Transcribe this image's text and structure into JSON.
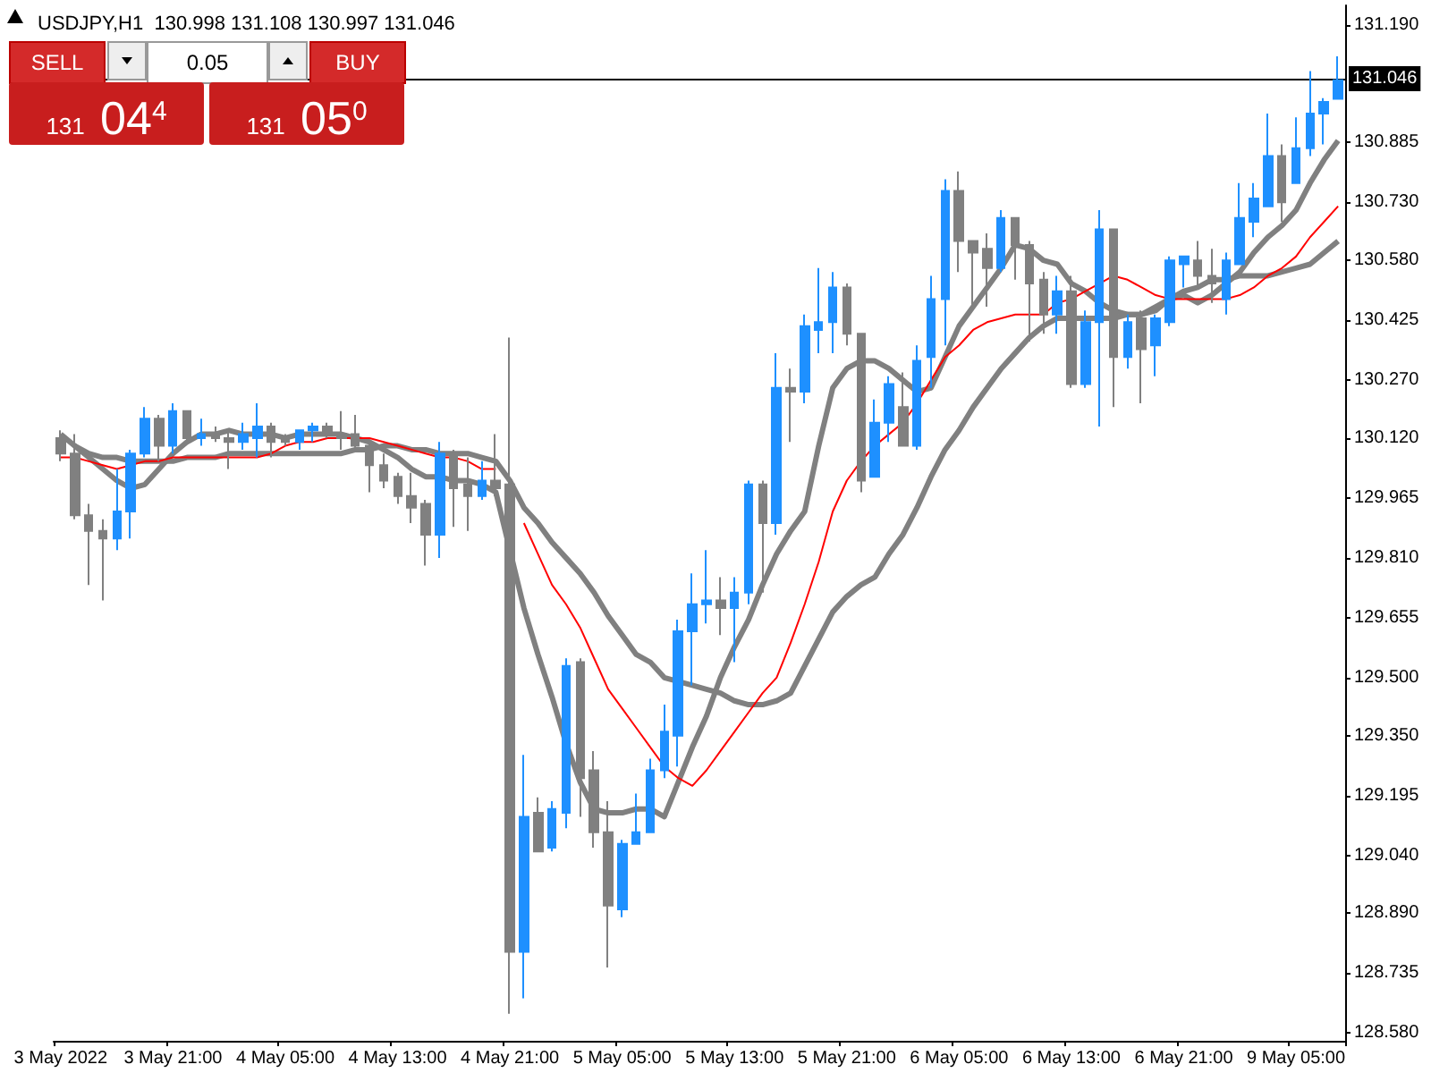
{
  "chart_data": {
    "type": "candlestick",
    "title": "USDJPY,H1  130.998 131.108 130.997 131.046",
    "categories": [
      "3 May 2022",
      null,
      null,
      null,
      null,
      null,
      null,
      null,
      "3 May 21:00",
      null,
      null,
      null,
      null,
      null,
      null,
      null,
      "4 May 05:00",
      null,
      null,
      null,
      null,
      null,
      null,
      null,
      "4 May 13:00",
      null,
      null,
      null,
      null,
      null,
      null,
      null,
      "4 May 21:00",
      null,
      null,
      null,
      null,
      null,
      null,
      null,
      "5 May 05:00",
      null,
      null,
      null,
      null,
      null,
      null,
      null,
      "5 May 13:00",
      null,
      null,
      null,
      null,
      null,
      null,
      null,
      "5 May 21:00",
      null,
      null,
      null,
      null,
      null,
      null,
      null,
      "6 May 05:00",
      null,
      null,
      null,
      null,
      null,
      null,
      null,
      "6 May 13:00",
      null,
      null,
      null,
      null,
      null,
      null,
      null,
      "6 May 21:00",
      null,
      null,
      null,
      null,
      null,
      null,
      null,
      "9 May 05:00",
      null,
      null,
      null
    ],
    "ylim": [
      128.56,
      131.24
    ],
    "yticks": [
      {
        "value": 131.19,
        "label": "131.190"
      },
      {
        "value": 130.885,
        "label": "130.885"
      },
      {
        "value": 130.73,
        "label": "130.730"
      },
      {
        "value": 130.58,
        "label": "130.580"
      },
      {
        "value": 130.425,
        "label": "130.425"
      },
      {
        "value": 130.27,
        "label": "130.270"
      },
      {
        "value": 130.12,
        "label": "130.120"
      },
      {
        "value": 129.965,
        "label": "129.965"
      },
      {
        "value": 129.81,
        "label": "129.810"
      },
      {
        "value": 129.655,
        "label": "129.655"
      },
      {
        "value": 129.5,
        "label": "129.500"
      },
      {
        "value": 129.35,
        "label": "129.350"
      },
      {
        "value": 129.195,
        "label": "129.195"
      },
      {
        "value": 129.04,
        "label": "129.040"
      },
      {
        "value": 128.89,
        "label": "128.890"
      },
      {
        "value": 128.735,
        "label": "128.735"
      },
      {
        "value": 128.58,
        "label": "128.580"
      }
    ],
    "series": [
      {
        "type": "line",
        "color": "#808080",
        "values": [
          130.13,
          130.1,
          130.07,
          130.04,
          130.01,
          129.99,
          130.0,
          130.04,
          130.08,
          130.11,
          130.13,
          130.13,
          130.14,
          130.13,
          130.13,
          130.13,
          130.12,
          130.13,
          130.13,
          130.13,
          130.13,
          130.12,
          130.11,
          130.09,
          130.07,
          130.04,
          130.02,
          130.02,
          130.01,
          130.01,
          130.0,
          129.98,
          129.83,
          129.68,
          129.56,
          129.45,
          129.33,
          129.23,
          129.16,
          129.15,
          129.15,
          129.16,
          129.16,
          129.14,
          129.23,
          129.32,
          129.4,
          129.5,
          129.58,
          129.65,
          129.74,
          129.82,
          129.88,
          129.93,
          130.1,
          130.25,
          130.3,
          130.32,
          130.32,
          130.3,
          130.27,
          130.24,
          130.25,
          130.33,
          130.41,
          130.46,
          130.51,
          130.56,
          130.62,
          130.61,
          130.58,
          130.57,
          130.52,
          130.5,
          130.47,
          130.45,
          130.44,
          130.44,
          130.45,
          130.48,
          130.49,
          130.47,
          130.49,
          130.52,
          130.55,
          130.6,
          130.64,
          130.67,
          130.71,
          130.78,
          130.84,
          130.89
        ]
      },
      {
        "type": "line",
        "color": "#808080",
        "values": [
          null,
          130.1,
          130.08,
          130.07,
          130.07,
          130.06,
          130.06,
          130.06,
          130.06,
          130.07,
          130.07,
          130.07,
          130.08,
          130.08,
          130.08,
          130.08,
          130.08,
          130.08,
          130.08,
          130.08,
          130.08,
          130.09,
          130.09,
          130.1,
          130.1,
          130.09,
          130.09,
          130.08,
          130.08,
          130.08,
          130.07,
          130.06,
          130.01,
          129.94,
          129.9,
          129.85,
          129.81,
          129.77,
          129.72,
          129.66,
          129.61,
          129.56,
          129.54,
          129.5,
          129.49,
          129.48,
          129.47,
          129.46,
          129.44,
          129.43,
          129.43,
          129.44,
          129.46,
          129.53,
          129.6,
          129.67,
          129.71,
          129.74,
          129.76,
          129.82,
          129.87,
          129.94,
          130.02,
          130.09,
          130.14,
          130.2,
          130.25,
          130.3,
          130.34,
          130.38,
          130.41,
          130.43,
          130.43,
          130.43,
          130.43,
          130.43,
          130.44,
          130.44,
          130.46,
          130.48,
          130.5,
          130.51,
          130.53,
          130.53,
          130.54,
          130.54,
          130.54,
          130.55,
          130.56,
          130.57,
          130.6,
          130.63
        ]
      },
      {
        "type": "line",
        "color": "#ff0000",
        "values": [
          130.07,
          130.07,
          130.06,
          130.05,
          130.04,
          130.05,
          130.06,
          130.06,
          130.07,
          130.07,
          130.07,
          130.07,
          130.07,
          130.07,
          130.07,
          130.08,
          130.1,
          130.11,
          130.11,
          130.12,
          130.12,
          130.12,
          130.12,
          130.11,
          130.1,
          130.09,
          130.08,
          130.07,
          130.07,
          130.06,
          130.04,
          130.04,
          null,
          129.9,
          129.82,
          129.74,
          129.69,
          129.63,
          129.55,
          129.47,
          129.42,
          129.37,
          129.32,
          129.27,
          129.24,
          129.22,
          129.26,
          129.31,
          129.36,
          129.41,
          129.46,
          129.5,
          129.59,
          129.69,
          129.8,
          129.93,
          130.01,
          130.06,
          130.1,
          130.13,
          130.16,
          130.21,
          130.27,
          130.33,
          130.36,
          130.4,
          130.42,
          130.43,
          130.44,
          130.44,
          130.44,
          130.47,
          130.48,
          130.5,
          130.52,
          130.54,
          130.53,
          130.51,
          130.49,
          130.48,
          130.48,
          130.48,
          130.48,
          130.48,
          130.49,
          130.51,
          130.54,
          130.56,
          130.59,
          130.64,
          130.68,
          130.72
        ]
      },
      {
        "type": "candlestick",
        "ohlc": [
          [
            130.12,
            130.14,
            130.06,
            130.08
          ],
          [
            130.08,
            130.13,
            129.91,
            129.92
          ],
          [
            129.92,
            129.95,
            129.74,
            129.88
          ],
          [
            129.88,
            129.91,
            129.7,
            129.86
          ],
          [
            129.86,
            130.04,
            129.83,
            129.93
          ],
          [
            129.93,
            130.09,
            129.86,
            130.08
          ],
          [
            130.08,
            130.2,
            130.07,
            130.17
          ],
          [
            130.17,
            130.18,
            130.06,
            130.1
          ],
          [
            130.1,
            130.21,
            130.08,
            130.19
          ],
          [
            130.19,
            130.19,
            130.11,
            130.12
          ],
          [
            130.12,
            130.17,
            130.1,
            130.13
          ],
          [
            130.13,
            130.15,
            130.11,
            130.12
          ],
          [
            130.12,
            130.14,
            130.04,
            130.11
          ],
          [
            130.11,
            130.16,
            130.09,
            130.13
          ],
          [
            130.12,
            130.21,
            130.07,
            130.15
          ],
          [
            130.15,
            130.16,
            130.07,
            130.11
          ],
          [
            130.12,
            130.13,
            130.1,
            130.11
          ],
          [
            130.11,
            130.14,
            130.09,
            130.14
          ],
          [
            130.14,
            130.16,
            130.11,
            130.15
          ],
          [
            130.15,
            130.16,
            130.12,
            130.13
          ],
          [
            130.13,
            130.19,
            130.09,
            130.12
          ],
          [
            130.13,
            130.18,
            130.09,
            130.1
          ],
          [
            130.1,
            130.11,
            129.98,
            130.05
          ],
          [
            130.05,
            130.08,
            129.99,
            130.01
          ],
          [
            130.02,
            130.03,
            129.95,
            129.97
          ],
          [
            129.97,
            130.03,
            129.9,
            129.94
          ],
          [
            129.95,
            129.96,
            129.79,
            129.87
          ],
          [
            129.87,
            130.11,
            129.81,
            130.08
          ],
          [
            130.08,
            130.09,
            129.89,
            129.99
          ],
          [
            130.0,
            130.07,
            129.88,
            129.97
          ],
          [
            129.97,
            130.06,
            129.96,
            130.01
          ],
          [
            130.01,
            130.13,
            129.97,
            129.99
          ],
          [
            130.0,
            130.38,
            128.63,
            128.79
          ],
          [
            128.79,
            129.3,
            128.67,
            129.14
          ],
          [
            129.15,
            129.19,
            129.05,
            129.05
          ],
          [
            129.06,
            129.18,
            129.05,
            129.16
          ],
          [
            129.15,
            129.55,
            129.11,
            129.53
          ],
          [
            129.54,
            129.55,
            129.14,
            129.24
          ],
          [
            129.26,
            129.31,
            129.06,
            129.1
          ],
          [
            129.1,
            129.18,
            128.75,
            128.91
          ],
          [
            128.9,
            129.08,
            128.88,
            129.07
          ],
          [
            129.07,
            129.2,
            129.07,
            129.1
          ],
          [
            129.1,
            129.29,
            129.1,
            129.26
          ],
          [
            129.26,
            129.43,
            129.24,
            129.36
          ],
          [
            129.35,
            129.65,
            129.27,
            129.62
          ],
          [
            129.62,
            129.77,
            129.48,
            129.69
          ],
          [
            129.69,
            129.83,
            129.64,
            129.7
          ],
          [
            129.7,
            129.76,
            129.61,
            129.68
          ],
          [
            129.68,
            129.76,
            129.54,
            129.72
          ],
          [
            129.72,
            130.01,
            129.69,
            130.0
          ],
          [
            130.0,
            130.01,
            129.72,
            129.9
          ],
          [
            129.9,
            130.34,
            129.87,
            130.25
          ],
          [
            130.25,
            130.3,
            130.11,
            130.24
          ],
          [
            130.24,
            130.44,
            130.21,
            130.41
          ],
          [
            130.4,
            130.56,
            130.34,
            130.42
          ],
          [
            130.42,
            130.55,
            130.34,
            130.51
          ],
          [
            130.51,
            130.52,
            130.36,
            130.39
          ],
          [
            130.39,
            130.39,
            129.98,
            130.01
          ],
          [
            130.02,
            130.22,
            130.02,
            130.16
          ],
          [
            130.16,
            130.28,
            130.11,
            130.26
          ],
          [
            130.2,
            130.29,
            130.1,
            130.1
          ],
          [
            130.1,
            130.36,
            130.09,
            130.32
          ],
          [
            130.33,
            130.54,
            130.25,
            130.48
          ],
          [
            130.48,
            130.79,
            130.36,
            130.76
          ],
          [
            130.76,
            130.81,
            130.55,
            130.63
          ],
          [
            130.63,
            130.63,
            130.45,
            130.6
          ],
          [
            130.61,
            130.65,
            130.46,
            130.56
          ],
          [
            130.56,
            130.71,
            130.55,
            130.69
          ],
          [
            130.69,
            130.69,
            130.53,
            130.62
          ],
          [
            130.62,
            130.63,
            130.37,
            130.52
          ],
          [
            130.53,
            130.55,
            130.39,
            130.44
          ],
          [
            130.44,
            130.54,
            130.39,
            130.5
          ],
          [
            130.5,
            130.54,
            130.25,
            130.26
          ],
          [
            130.26,
            130.45,
            130.25,
            130.42
          ],
          [
            130.42,
            130.71,
            130.15,
            130.66
          ],
          [
            130.66,
            130.66,
            130.2,
            130.33
          ],
          [
            130.33,
            130.44,
            130.3,
            130.42
          ],
          [
            130.43,
            130.45,
            130.21,
            130.35
          ],
          [
            130.36,
            130.44,
            130.28,
            130.43
          ],
          [
            130.42,
            130.59,
            130.41,
            130.58
          ],
          [
            130.57,
            130.59,
            130.51,
            130.59
          ],
          [
            130.58,
            130.63,
            130.51,
            130.54
          ],
          [
            130.54,
            130.61,
            130.47,
            130.52
          ],
          [
            130.48,
            130.6,
            130.44,
            130.58
          ],
          [
            130.57,
            130.78,
            130.57,
            130.69
          ],
          [
            130.68,
            130.78,
            130.64,
            130.74
          ],
          [
            130.72,
            130.96,
            130.72,
            130.85
          ],
          [
            130.85,
            130.88,
            130.68,
            130.73
          ],
          [
            130.78,
            130.95,
            130.78,
            130.87
          ],
          [
            130.87,
            131.07,
            130.85,
            130.96
          ],
          [
            130.96,
            131.0,
            130.88,
            130.99
          ],
          [
            130.998,
            131.108,
            130.997,
            131.046
          ]
        ],
        "colors": [
          "#808080",
          "#808080",
          "#808080",
          "#808080",
          "#1e90ff",
          "#1e90ff",
          "#1e90ff",
          "#808080",
          "#1e90ff",
          "#808080",
          "#1e90ff",
          "#808080",
          "#808080",
          "#1e90ff",
          "#1e90ff",
          "#808080",
          "#808080",
          "#1e90ff",
          "#1e90ff",
          "#808080",
          "#808080",
          "#808080",
          "#808080",
          "#808080",
          "#808080",
          "#808080",
          "#808080",
          "#1e90ff",
          "#808080",
          "#808080",
          "#1e90ff",
          "#808080",
          "#808080",
          "#1e90ff",
          "#808080",
          "#1e90ff",
          "#1e90ff",
          "#808080",
          "#808080",
          "#808080",
          "#1e90ff",
          "#1e90ff",
          "#1e90ff",
          "#1e90ff",
          "#1e90ff",
          "#1e90ff",
          "#1e90ff",
          "#808080",
          "#1e90ff",
          "#1e90ff",
          "#808080",
          "#1e90ff",
          "#808080",
          "#1e90ff",
          "#1e90ff",
          "#1e90ff",
          "#808080",
          "#808080",
          "#1e90ff",
          "#1e90ff",
          "#808080",
          "#1e90ff",
          "#1e90ff",
          "#1e90ff",
          "#808080",
          "#808080",
          "#808080",
          "#1e90ff",
          "#808080",
          "#808080",
          "#808080",
          "#1e90ff",
          "#808080",
          "#1e90ff",
          "#1e90ff",
          "#808080",
          "#1e90ff",
          "#808080",
          "#1e90ff",
          "#1e90ff",
          "#1e90ff",
          "#808080",
          "#808080",
          "#1e90ff",
          "#1e90ff",
          "#1e90ff",
          "#1e90ff",
          "#808080",
          "#1e90ff",
          "#1e90ff",
          "#1e90ff",
          "#1e90ff"
        ]
      }
    ],
    "ref_lines": [
      {
        "axis": "y",
        "value": 131.046,
        "label": "131.046",
        "color": "#000000"
      }
    ],
    "annotations": [
      "SELL",
      "0.05",
      "BUY",
      "131 04$^{4}$",
      "131 05$^{0}$"
    ],
    "grid": false,
    "marker": "none"
  }
}
